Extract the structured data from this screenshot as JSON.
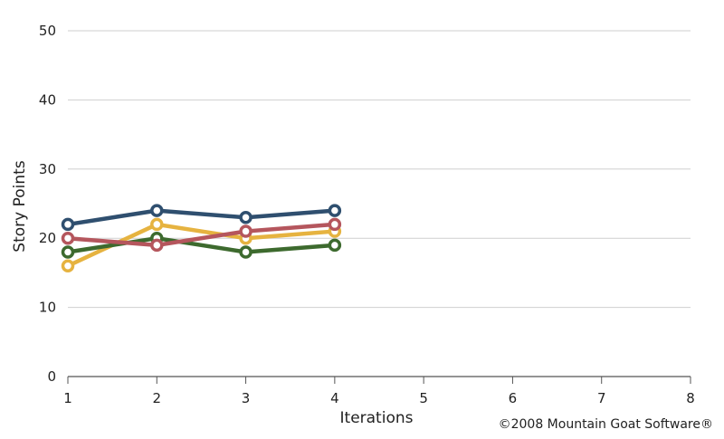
{
  "chart_data": {
    "type": "line",
    "xlabel": "Iterations",
    "ylabel": "Story Points",
    "x_ticks": [
      "1",
      "2",
      "3",
      "4",
      "5",
      "6",
      "7",
      "8"
    ],
    "y_ticks": [
      "0",
      "10",
      "20",
      "30",
      "40",
      "50"
    ],
    "xlim": [
      1,
      8
    ],
    "ylim": [
      0,
      50
    ],
    "grid": "horizontal",
    "series": [
      {
        "color": "#2f4f6f",
        "x": [
          1,
          2,
          3,
          4
        ],
        "y": [
          22,
          24,
          23,
          24
        ]
      },
      {
        "color": "#e6b340",
        "x": [
          1,
          2,
          3,
          4
        ],
        "y": [
          16,
          22,
          20,
          21
        ]
      },
      {
        "color": "#3d6a2e",
        "x": [
          1,
          2,
          3,
          4
        ],
        "y": [
          18,
          20,
          18,
          19
        ]
      },
      {
        "color": "#b5565d",
        "x": [
          1,
          2,
          3,
          4
        ],
        "y": [
          20,
          19,
          21,
          22
        ]
      }
    ],
    "annotation": "©2008 Mountain Goat Software®"
  }
}
